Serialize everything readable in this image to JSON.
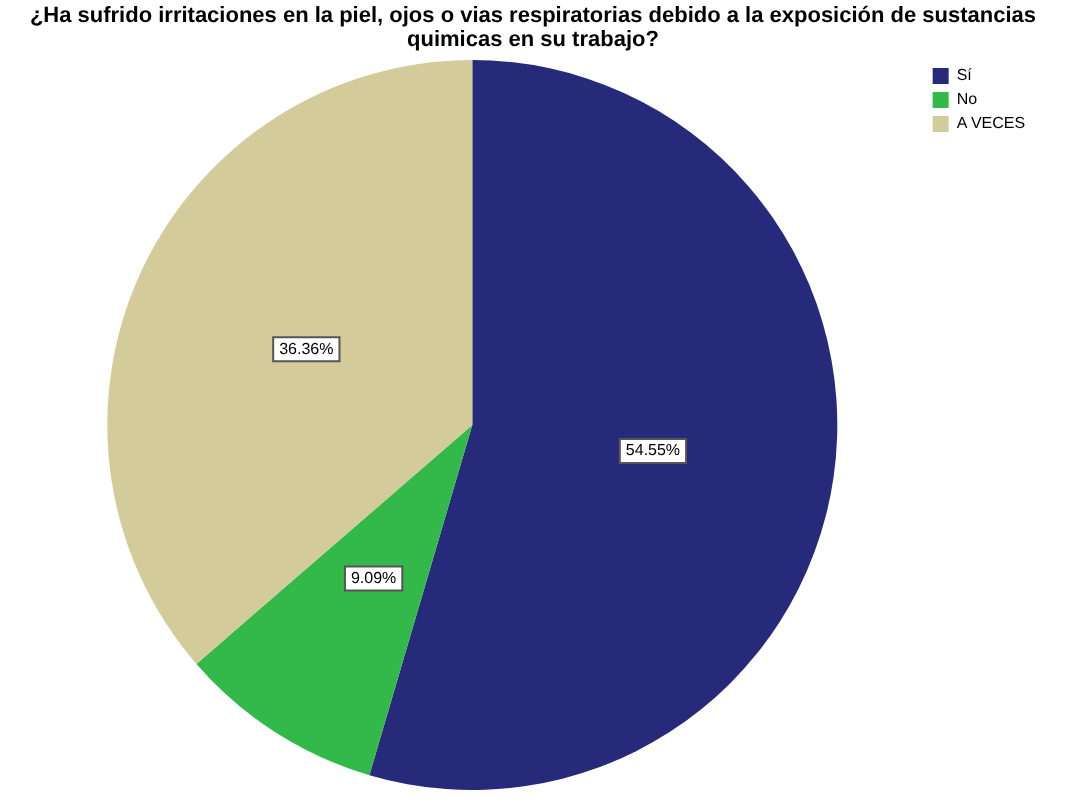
{
  "chart_data": {
    "type": "pie",
    "title": "¿Ha sufrido irritaciones en la piel, ojos o vias respiratorias debido a la exposición de sustancias quimicas en su trabajo?",
    "categories": [
      "Sí",
      "No",
      "A VECES"
    ],
    "values": [
      54.55,
      9.09,
      36.36
    ],
    "colors": [
      "#272a7a",
      "#33b84a",
      "#d4cb9a"
    ],
    "value_labels": [
      "54.55%",
      "9.09%",
      "36.36%"
    ],
    "legend": "top right"
  }
}
